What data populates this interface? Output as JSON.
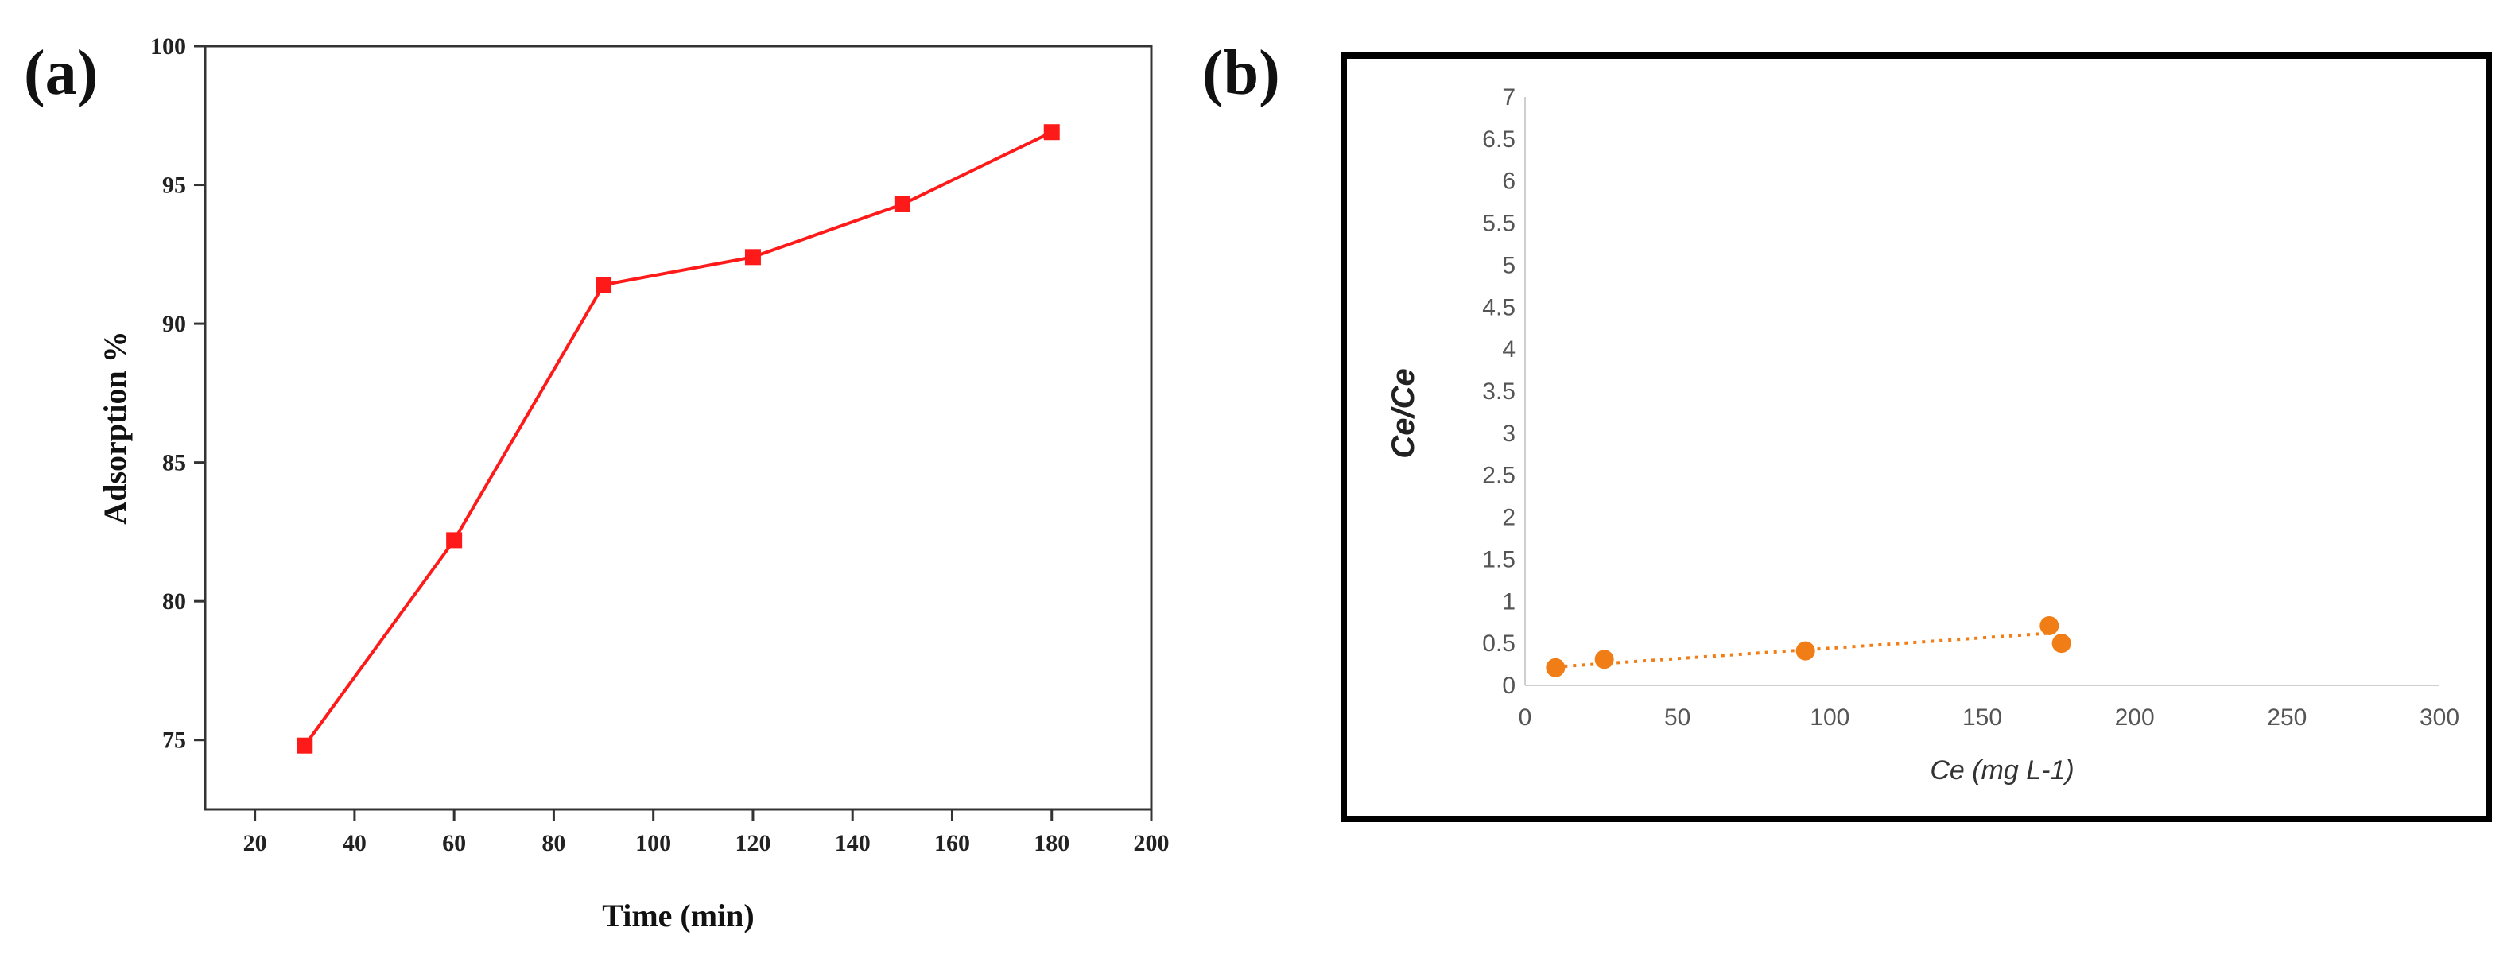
{
  "panels": {
    "a": {
      "letter": "(a)",
      "chart_data": {
        "type": "line",
        "x": [
          30,
          60,
          90,
          120,
          150,
          180
        ],
        "series": [
          {
            "values": [
              74.8,
              82.2,
              91.4,
              92.4,
              94.3,
              96.9
            ]
          }
        ],
        "xlabel": "Time (min)",
        "ylabel": "Adsorption %",
        "xlim": [
          10,
          200
        ],
        "ylim": [
          72.5,
          100
        ],
        "xticks": [
          20,
          40,
          60,
          80,
          100,
          120,
          140,
          160,
          180,
          200
        ],
        "xtick_labels": [
          "20",
          "40",
          "60",
          "80",
          "100",
          "120",
          "140",
          "160",
          "180",
          "200"
        ],
        "yticks": [
          75,
          80,
          85,
          90,
          95,
          100
        ],
        "ytick_labels": [
          "75",
          "80",
          "85",
          "90",
          "95",
          "100"
        ],
        "line_color": "#ff1a1a",
        "marker": "square",
        "grid": false,
        "legend": false
      }
    },
    "b": {
      "letter": "(b)",
      "chart_data": {
        "type": "scatter",
        "x": [
          10,
          26,
          92,
          172,
          176
        ],
        "series": [
          {
            "values": [
              0.21,
              0.31,
              0.41,
              0.71,
              0.5
            ]
          }
        ],
        "trendline": {
          "style": "dotted",
          "x": [
            10,
            172
          ],
          "y": [
            0.22,
            0.62
          ]
        },
        "xlabel": "Ce (mg L-1)",
        "ylabel": "Ce/Ce",
        "xlim": [
          0,
          300
        ],
        "ylim": [
          0,
          7
        ],
        "xticks": [
          0,
          50,
          100,
          150,
          200,
          250,
          300
        ],
        "xtick_labels": [
          "0",
          "50",
          "100",
          "150",
          "200",
          "250",
          "300"
        ],
        "yticks": [
          0,
          0.5,
          1,
          1.5,
          2,
          2.5,
          3,
          3.5,
          4,
          4.5,
          5,
          5.5,
          6,
          6.5,
          7
        ],
        "ytick_labels": [
          "0",
          "0.5",
          "1",
          "1.5",
          "2",
          "2.5",
          "3",
          "3.5",
          "4",
          "4.5",
          "5",
          "5.5",
          "6",
          "6.5",
          "7"
        ],
        "marker_color": "#f07d16",
        "grid": false,
        "legend": false,
        "frame": true
      }
    }
  }
}
